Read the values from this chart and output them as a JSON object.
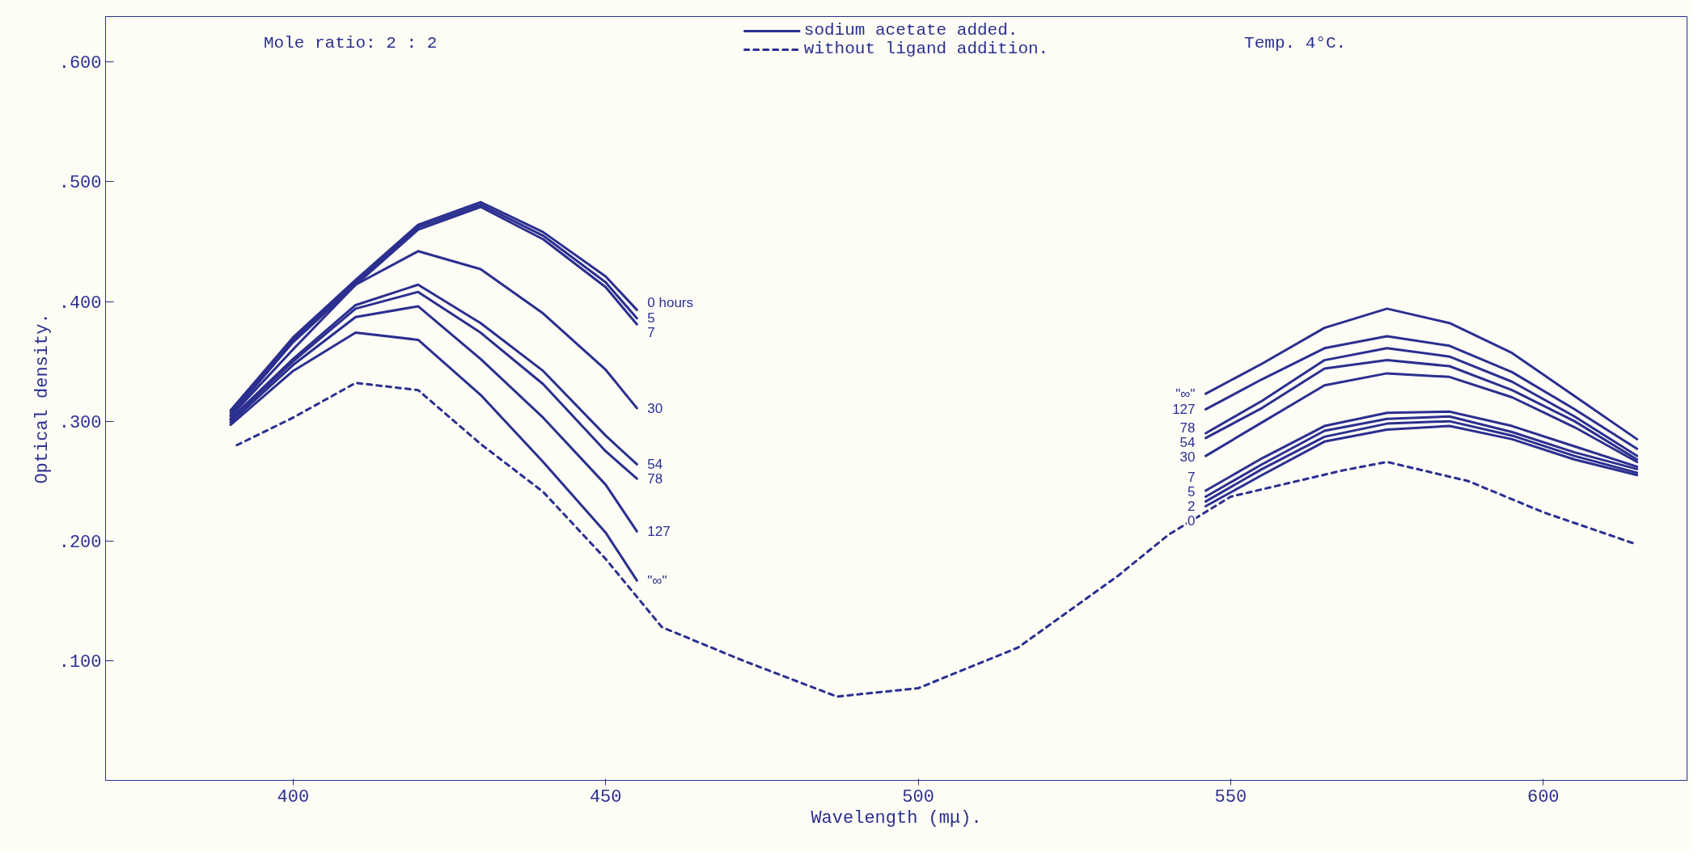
{
  "chart_data": {
    "type": "line",
    "xlabel": "Wavelength (mμ).",
    "ylabel": "Optical density.",
    "xlim": [
      370,
      623
    ],
    "ylim": [
      0,
      0.638
    ],
    "xticks": [
      400,
      450,
      500,
      550,
      600
    ],
    "yticks": [
      {
        "value": 0.1,
        "label": ".100"
      },
      {
        "value": 0.2,
        "label": ".200"
      },
      {
        "value": 0.3,
        "label": ".300"
      },
      {
        "value": 0.4,
        "label": ".400"
      },
      {
        "value": 0.5,
        "label": ".500"
      },
      {
        "value": 0.6,
        "label": ".600"
      }
    ],
    "grid": false,
    "legend": "top",
    "line_style": "solid",
    "marker": "none",
    "series": [
      {
        "name": "0 hours",
        "color": "#2b2f8f",
        "x": [
          390,
          400,
          410,
          420,
          430,
          440,
          450,
          455
        ],
        "values": [
          0.309,
          0.37,
          0.418,
          0.464,
          0.483,
          0.458,
          0.421,
          0.393
        ]
      },
      {
        "name": "5",
        "color": "#2b2f8f",
        "x": [
          390,
          400,
          410,
          420,
          430,
          440,
          450,
          455
        ],
        "values": [
          0.307,
          0.368,
          0.416,
          0.462,
          0.481,
          0.455,
          0.416,
          0.386
        ]
      },
      {
        "name": "7",
        "color": "#2b2f8f",
        "x": [
          390,
          400,
          410,
          420,
          430,
          440,
          450,
          455
        ],
        "values": [
          0.305,
          0.366,
          0.414,
          0.46,
          0.479,
          0.452,
          0.412,
          0.381
        ]
      },
      {
        "name": "30",
        "color": "#2b2f8f",
        "x": [
          390,
          400,
          410,
          420,
          430,
          440,
          450,
          455
        ],
        "values": [
          0.304,
          0.36,
          0.414,
          0.442,
          0.427,
          0.39,
          0.343,
          0.311
        ]
      },
      {
        "name": "54",
        "color": "#2b2f8f",
        "x": [
          390,
          400,
          410,
          420,
          430,
          440,
          450,
          455
        ],
        "values": [
          0.302,
          0.352,
          0.397,
          0.414,
          0.382,
          0.342,
          0.288,
          0.264
        ]
      },
      {
        "name": "78",
        "color": "#2b2f8f",
        "x": [
          390,
          400,
          410,
          420,
          430,
          440,
          450,
          455
        ],
        "values": [
          0.301,
          0.35,
          0.394,
          0.408,
          0.374,
          0.331,
          0.275,
          0.252
        ]
      },
      {
        "name": "127",
        "color": "#2b2f8f",
        "x": [
          390,
          400,
          410,
          420,
          430,
          440,
          450,
          455
        ],
        "values": [
          0.299,
          0.347,
          0.387,
          0.396,
          0.352,
          0.303,
          0.247,
          0.208
        ]
      },
      {
        "name": "\"∞\"",
        "color": "#2b2f8f",
        "x": [
          390,
          400,
          410,
          420,
          430,
          440,
          450,
          455
        ],
        "values": [
          0.297,
          0.342,
          0.374,
          0.368,
          0.322,
          0.266,
          0.207,
          0.167
        ]
      },
      {
        "name": "\"∞\"",
        "color": "#2b2f8f",
        "x": [
          546,
          555,
          565,
          575,
          585,
          595,
          605,
          615
        ],
        "values": [
          0.323,
          0.348,
          0.378,
          0.394,
          0.382,
          0.357,
          0.321,
          0.285
        ]
      },
      {
        "name": "127",
        "color": "#2b2f8f",
        "x": [
          546,
          555,
          565,
          575,
          585,
          595,
          605,
          615
        ],
        "values": [
          0.31,
          0.335,
          0.361,
          0.371,
          0.363,
          0.341,
          0.31,
          0.277
        ]
      },
      {
        "name": "78",
        "color": "#2b2f8f",
        "x": [
          546,
          555,
          565,
          575,
          585,
          595,
          605,
          615
        ],
        "values": [
          0.29,
          0.317,
          0.351,
          0.361,
          0.354,
          0.333,
          0.304,
          0.271
        ]
      },
      {
        "name": "54",
        "color": "#2b2f8f",
        "x": [
          546,
          555,
          565,
          575,
          585,
          595,
          605,
          615
        ],
        "values": [
          0.286,
          0.311,
          0.344,
          0.351,
          0.346,
          0.326,
          0.3,
          0.268
        ]
      },
      {
        "name": "30",
        "color": "#2b2f8f",
        "x": [
          546,
          555,
          565,
          575,
          585,
          595,
          605,
          615
        ],
        "values": [
          0.271,
          0.299,
          0.33,
          0.34,
          0.337,
          0.32,
          0.295,
          0.266
        ]
      },
      {
        "name": "7",
        "color": "#2b2f8f",
        "x": [
          546,
          555,
          565,
          575,
          585,
          595,
          605,
          615
        ],
        "values": [
          0.242,
          0.269,
          0.296,
          0.307,
          0.308,
          0.296,
          0.279,
          0.262
        ]
      },
      {
        "name": "5",
        "color": "#2b2f8f",
        "x": [
          546,
          555,
          565,
          575,
          585,
          595,
          605,
          615
        ],
        "values": [
          0.237,
          0.264,
          0.292,
          0.302,
          0.304,
          0.291,
          0.274,
          0.26
        ]
      },
      {
        "name": "2",
        "color": "#2b2f8f",
        "x": [
          546,
          555,
          565,
          575,
          585,
          595,
          605,
          615
        ],
        "values": [
          0.233,
          0.26,
          0.287,
          0.298,
          0.3,
          0.288,
          0.271,
          0.257
        ]
      },
      {
        "name": "0",
        "color": "#2b2f8f",
        "x": [
          546,
          555,
          565,
          575,
          585,
          595,
          605,
          615
        ],
        "values": [
          0.229,
          0.255,
          0.283,
          0.293,
          0.296,
          0.285,
          0.268,
          0.255
        ]
      },
      {
        "name": "without ligand addition.",
        "color": "#2b2f8f",
        "line_style": "dashed",
        "x": [
          391,
          400,
          410,
          420,
          430,
          440,
          450,
          459,
          472,
          487,
          500,
          516,
          532,
          540,
          550,
          568,
          575,
          588,
          600,
          615
        ],
        "values": [
          0.28,
          0.303,
          0.332,
          0.326,
          0.281,
          0.241,
          0.185,
          0.128,
          0.1,
          0.07,
          0.077,
          0.111,
          0.171,
          0.205,
          0.237,
          0.259,
          0.266,
          0.25,
          0.224,
          0.197
        ]
      }
    ],
    "annotations": [
      "Mole ratio:  2 : 2",
      "sodium acetate added.",
      "Temp. 4°C."
    ]
  }
}
